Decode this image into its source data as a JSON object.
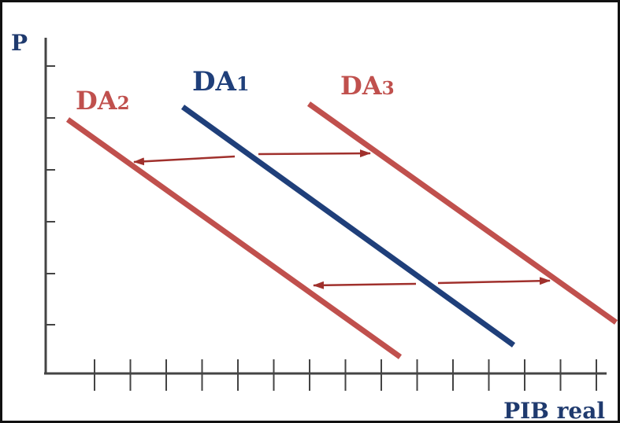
{
  "axes": {
    "y_label": "P",
    "x_label": "PIB real",
    "color": "#444444",
    "label_color": "#1f3a6e"
  },
  "curves": [
    {
      "id": "DA1",
      "base": "DA",
      "sub": "1",
      "color": "#1f3f7a"
    },
    {
      "id": "DA2",
      "base": "DA",
      "sub": "2",
      "color": "#c0504d"
    },
    {
      "id": "DA3",
      "base": "DA",
      "sub": "3",
      "color": "#c0504d"
    }
  ],
  "arrows": {
    "color": "#a0302c",
    "shifts": [
      {
        "from": "DA1",
        "to": "DA2",
        "direction": "left"
      },
      {
        "from": "DA1",
        "to": "DA3",
        "direction": "right"
      },
      {
        "from": "DA1",
        "to": "DA2",
        "direction": "left"
      },
      {
        "from": "DA1",
        "to": "DA3",
        "direction": "right"
      }
    ]
  }
}
